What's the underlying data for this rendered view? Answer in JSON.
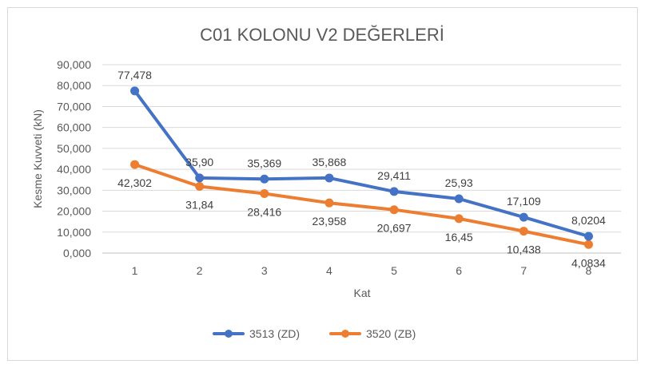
{
  "chart_data": {
    "type": "line",
    "title": "C01 KOLONU V2 DEĞERLERİ",
    "xlabel": "Kat",
    "ylabel": "Kesme Kuvveti (kN)",
    "categories": [
      "1",
      "2",
      "3",
      "4",
      "5",
      "6",
      "7",
      "8"
    ],
    "ylim": [
      0,
      90000
    ],
    "yticks": [
      0,
      10000,
      20000,
      30000,
      40000,
      50000,
      60000,
      70000,
      80000,
      90000
    ],
    "ytick_labels": [
      "0,000",
      "10,000",
      "20,000",
      "30,000",
      "40,000",
      "50,000",
      "60,000",
      "70,000",
      "80,000",
      "90,000"
    ],
    "grid": true,
    "legend_position": "bottom",
    "series": [
      {
        "name": "3513 (ZD)",
        "color": "#4472c4",
        "values": [
          77478,
          35900,
          35369,
          35868,
          29411,
          25930,
          17109,
          8020.4
        ],
        "labels": [
          "77,478",
          "35,90",
          "35,369",
          "35,868",
          "29,411",
          "25,93",
          "17,109",
          "8,0204"
        ],
        "label_position": "above"
      },
      {
        "name": "3520 (ZB)",
        "color": "#ed7d31",
        "values": [
          42302,
          31840,
          28416,
          23958,
          20697,
          16450,
          10438,
          4083.4
        ],
        "labels": [
          "42,302",
          "31,84",
          "28,416",
          "23,958",
          "20,697",
          "16,45",
          "10,438",
          "4,0834"
        ],
        "label_position": "below"
      }
    ]
  }
}
